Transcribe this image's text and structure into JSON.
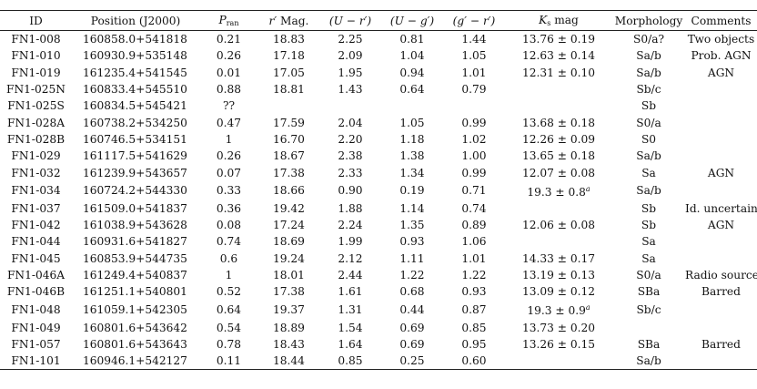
{
  "headers": {
    "id": "ID",
    "position": "Position (J2000)",
    "prob_main": "P",
    "prob_sub": "ran",
    "mag_main": "r′",
    "mag_rest": " Mag.",
    "ur": "(U − r′)",
    "ug": "(U − g′)",
    "gr": "(g′ − r′)",
    "ks_main": "K",
    "ks_sub": "s",
    "ks_rest": " mag",
    "morphology": "Morphology",
    "comments": "Comments"
  },
  "rows": [
    {
      "id": "FN1-008",
      "pos": "160858.0+541818",
      "prob": "0.21",
      "mag": "18.83",
      "ur": "2.25",
      "ug": "0.81",
      "gr": "1.44",
      "ks": "13.76 ± 0.19",
      "ks_note": "",
      "morph": "S0/a?",
      "comment": "Two objects"
    },
    {
      "id": "FN1-010",
      "pos": "160930.9+535148",
      "prob": "0.26",
      "mag": "17.18",
      "ur": "2.09",
      "ug": "1.04",
      "gr": "1.05",
      "ks": "12.63 ± 0.14",
      "ks_note": "",
      "morph": "Sa/b",
      "comment": "Prob. AGN"
    },
    {
      "id": "FN1-019",
      "pos": "161235.4+541545",
      "prob": "0.01",
      "mag": "17.05",
      "ur": "1.95",
      "ug": "0.94",
      "gr": "1.01",
      "ks": "12.31 ± 0.10",
      "ks_note": "",
      "morph": "Sa/b",
      "comment": "AGN"
    },
    {
      "id": "FN1-025N",
      "pos": "160833.4+545510",
      "prob": "0.88",
      "mag": "18.81",
      "ur": "1.43",
      "ug": "0.64",
      "gr": "0.79",
      "ks": "",
      "ks_note": "",
      "morph": "Sb/c",
      "comment": ""
    },
    {
      "id": "FN1-025S",
      "pos": "160834.5+545421",
      "prob": "??",
      "mag": "",
      "ur": "",
      "ug": "",
      "gr": "",
      "ks": "",
      "ks_note": "",
      "morph": "Sb",
      "comment": ""
    },
    {
      "id": "FN1-028A",
      "pos": "160738.2+534250",
      "prob": "0.47",
      "mag": "17.59",
      "ur": "2.04",
      "ug": "1.05",
      "gr": "0.99",
      "ks": "13.68 ± 0.18",
      "ks_note": "",
      "morph": "S0/a",
      "comment": ""
    },
    {
      "id": "FN1-028B",
      "pos": "160746.5+534151",
      "prob": "1",
      "mag": "16.70",
      "ur": "2.20",
      "ug": "1.18",
      "gr": "1.02",
      "ks": "12.26 ± 0.09",
      "ks_note": "",
      "morph": "S0",
      "comment": ""
    },
    {
      "id": "FN1-029",
      "pos": "161117.5+541629",
      "prob": "0.26",
      "mag": "18.67",
      "ur": "2.38",
      "ug": "1.38",
      "gr": "1.00",
      "ks": "13.65 ± 0.18",
      "ks_note": "",
      "morph": "Sa/b",
      "comment": ""
    },
    {
      "id": "FN1-032",
      "pos": "161239.9+543657",
      "prob": "0.07",
      "mag": "17.38",
      "ur": "2.33",
      "ug": "1.34",
      "gr": "0.99",
      "ks": "12.07 ± 0.08",
      "ks_note": "",
      "morph": "Sa",
      "comment": "AGN"
    },
    {
      "id": "FN1-034",
      "pos": "160724.2+544330",
      "prob": "0.33",
      "mag": "18.66",
      "ur": "0.90",
      "ug": "0.19",
      "gr": "0.71",
      "ks": "19.3 ± 0.8",
      "ks_note": "a",
      "morph": "Sa/b",
      "comment": ""
    },
    {
      "id": "FN1-037",
      "pos": "161509.0+541837",
      "prob": "0.36",
      "mag": "19.42",
      "ur": "1.88",
      "ug": "1.14",
      "gr": "0.74",
      "ks": "",
      "ks_note": "",
      "morph": "Sb",
      "comment": "Id. uncertain"
    },
    {
      "id": "FN1-042",
      "pos": "161038.9+543628",
      "prob": "0.08",
      "mag": "17.24",
      "ur": "2.24",
      "ug": "1.35",
      "gr": "0.89",
      "ks": "12.06 ± 0.08",
      "ks_note": "",
      "morph": "Sb",
      "comment": "AGN"
    },
    {
      "id": "FN1-044",
      "pos": "160931.6+541827",
      "prob": "0.74",
      "mag": "18.69",
      "ur": "1.99",
      "ug": "0.93",
      "gr": "1.06",
      "ks": "",
      "ks_note": "",
      "morph": "Sa",
      "comment": ""
    },
    {
      "id": "FN1-045",
      "pos": "160853.9+544735",
      "prob": "0.6",
      "mag": "19.24",
      "ur": "2.12",
      "ug": "1.11",
      "gr": "1.01",
      "ks": "14.33 ± 0.17",
      "ks_note": "",
      "morph": "Sa",
      "comment": ""
    },
    {
      "id": "FN1-046A",
      "pos": "161249.4+540837",
      "prob": "1",
      "mag": "18.01",
      "ur": "2.44",
      "ug": "1.22",
      "gr": "1.22",
      "ks": "13.19 ± 0.13",
      "ks_note": "",
      "morph": "S0/a",
      "comment": "Radio source"
    },
    {
      "id": "FN1-046B",
      "pos": "161251.1+540801",
      "prob": "0.52",
      "mag": "17.38",
      "ur": "1.61",
      "ug": "0.68",
      "gr": "0.93",
      "ks": "13.09 ± 0.12",
      "ks_note": "",
      "morph": "SBa",
      "comment": "Barred"
    },
    {
      "id": "FN1-048",
      "pos": "161059.1+542305",
      "prob": "0.64",
      "mag": "19.37",
      "ur": "1.31",
      "ug": "0.44",
      "gr": "0.87",
      "ks": "19.3 ± 0.9",
      "ks_note": "a",
      "morph": "Sb/c",
      "comment": ""
    },
    {
      "id": "FN1-049",
      "pos": "160801.6+543642",
      "prob": "0.54",
      "mag": "18.89",
      "ur": "1.54",
      "ug": "0.69",
      "gr": "0.85",
      "ks": "13.73 ± 0.20",
      "ks_note": "",
      "morph": "",
      "comment": ""
    },
    {
      "id": "FN1-057",
      "pos": "160801.6+543643",
      "prob": "0.78",
      "mag": "18.43",
      "ur": "1.64",
      "ug": "0.69",
      "gr": "0.95",
      "ks": "13.26 ± 0.15",
      "ks_note": "",
      "morph": "SBa",
      "comment": "Barred"
    },
    {
      "id": "FN1-101",
      "pos": "160946.1+542127",
      "prob": "0.11",
      "mag": "18.44",
      "ur": "0.85",
      "ug": "0.25",
      "gr": "0.60",
      "ks": "",
      "ks_note": "",
      "morph": "Sa/b",
      "comment": ""
    }
  ]
}
